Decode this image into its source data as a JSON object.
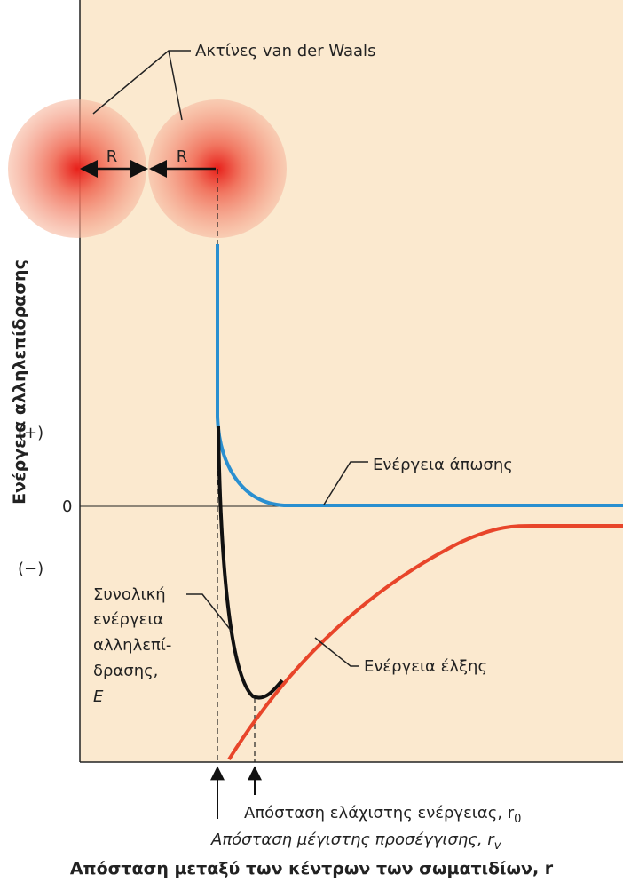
{
  "vdw_label": "Ακτίνες van der Waals",
  "radius_labels": [
    "R",
    "R"
  ],
  "y_axis_label": "Ενέργεια αλληλεπίδρασης",
  "y_markers": [
    "(+)",
    "0",
    "(−)"
  ],
  "curves": {
    "repulsion": "Ενέργεια άπωσης",
    "attraction": "Ενέργεια έλξης",
    "total": [
      "Συνολική",
      "ενέργεια",
      "αλληλεπί-",
      "δρασης,",
      "E"
    ]
  },
  "distances": {
    "min_energy": {
      "text": "Απόσταση ελάχιστης ενέργειας, r",
      "subscript": "0"
    },
    "closest_approach": {
      "text": "Απόσταση μέγιστης προσέγγισης, r",
      "subscript": "v"
    }
  },
  "x_axis_label": "Απόσταση μεταξύ των κέντρων των σωματιδίων, r"
}
